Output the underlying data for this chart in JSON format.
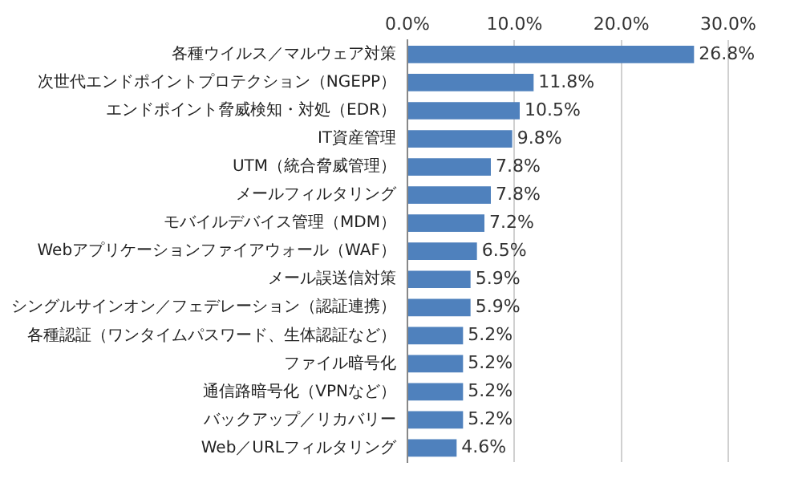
{
  "chart_data": {
    "type": "bar",
    "orientation": "horizontal",
    "categories": [
      "各種ウイルス／マルウェア対策",
      "次世代エンドポイントプロテクション（NGEPP）",
      "エンドポイント脅威検知・対処（EDR）",
      "IT資産管理",
      "UTM（統合脅威管理）",
      "メールフィルタリング",
      "モバイルデバイス管理（MDM）",
      "Webアプリケーションファイアウォール（WAF）",
      "メール誤送信対策",
      "シングルサインオン／フェデレーション（認証連携）",
      "各種認証（ワンタイムパスワード、生体認証など）",
      "ファイル暗号化",
      "通信路暗号化（VPNなど）",
      "バックアップ／リカバリー",
      "Web／URLフィルタリング"
    ],
    "values": [
      26.8,
      11.8,
      10.5,
      9.8,
      7.8,
      7.8,
      7.2,
      6.5,
      5.9,
      5.9,
      5.2,
      5.2,
      5.2,
      5.2,
      4.6
    ],
    "value_labels": [
      "26.8%",
      "11.8%",
      "10.5%",
      "9.8%",
      "7.8%",
      "7.8%",
      "7.2%",
      "6.5%",
      "5.9%",
      "5.9%",
      "5.2%",
      "5.2%",
      "5.2%",
      "5.2%",
      "4.6%"
    ],
    "color": "#4f81bd",
    "xlim": [
      0,
      30
    ],
    "xticks": [
      {
        "value": 0,
        "label": "0.0%"
      },
      {
        "value": 10,
        "label": "10.0%"
      },
      {
        "value": 20,
        "label": "20.0%"
      },
      {
        "value": 30,
        "label": "30.0%"
      }
    ],
    "grid": "x"
  }
}
